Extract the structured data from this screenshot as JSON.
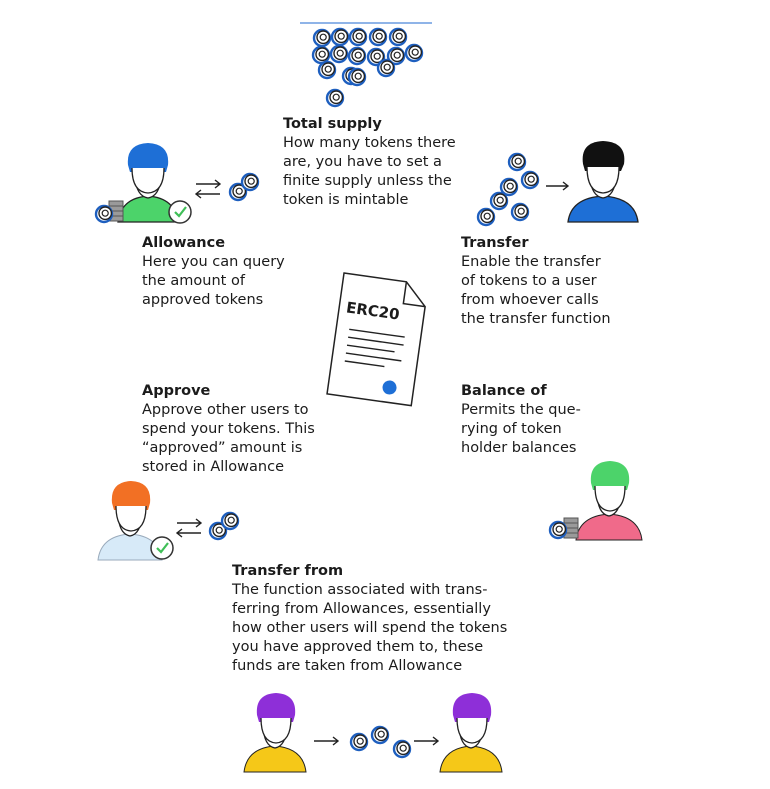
{
  "sections": {
    "total_supply": {
      "title": "Total supply",
      "body": "How many tokens there\nare, you have to set a\nfinite supply unless the\ntoken is mintable"
    },
    "allowance": {
      "title": "Allowance",
      "body": "Here you can query\nthe amount of\napproved tokens"
    },
    "transfer": {
      "title": "Transfer",
      "body": "Enable the transfer\nof tokens to a user\nfrom whoever calls\nthe transfer function"
    },
    "approve": {
      "title": "Approve",
      "body": "Approve other users to\nspend your tokens. This\n“approved” amount is\nstored in Allowance"
    },
    "balance_of": {
      "title": "Balance of",
      "body": "Permits the que-\nrying of token\nholder balances"
    },
    "transfer_from": {
      "title": "Transfer from",
      "body": "The function associated with trans-\nferring from Allowances, essentially\nhow other users will spend the tokens\nyou have approved them to, these\nfunds are taken from Allowance"
    }
  },
  "document": {
    "label": "ERC20"
  },
  "icons": {
    "user_blue_green": "user-icon",
    "user_black_blue": "user-icon",
    "user_orange_lightblue": "user-icon",
    "user_green_pink": "user-icon",
    "user_purple_yellow": "user-icon"
  },
  "colors": {
    "blue": "#1e6fd6",
    "green": "#4cd36a",
    "pink": "#f06a8a",
    "orange": "#f27024",
    "purple": "#8e2fd8",
    "yellow": "#f5c818",
    "light_blue": "#d7eaf8",
    "black": "#111111",
    "coin_blue": "#1e5fbf"
  }
}
